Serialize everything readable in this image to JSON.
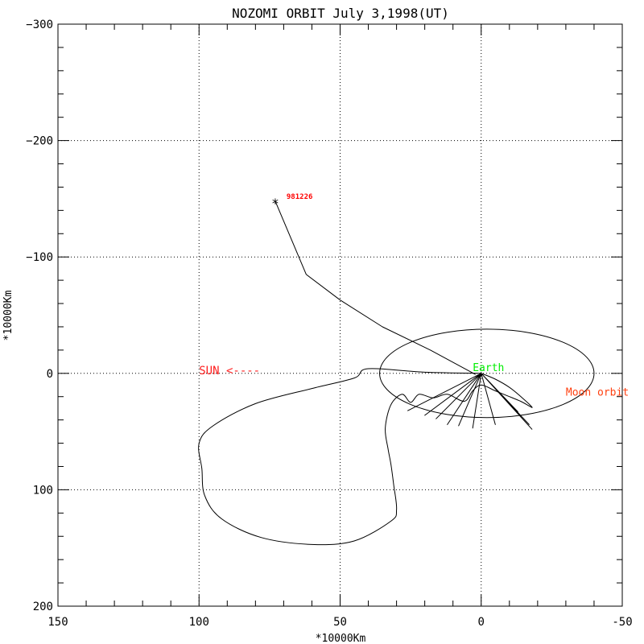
{
  "chart_data": {
    "type": "line",
    "title": "NOZOMI ORBIT July 3,1998(UT)",
    "xlabel": "*10000Km",
    "ylabel": "*10000Km",
    "xlim": [
      150,
      -50
    ],
    "ylim": [
      -300,
      200
    ],
    "x_ticks": [
      150,
      100,
      50,
      0,
      -50
    ],
    "y_ticks": [
      -300,
      -200,
      -100,
      0,
      100,
      200
    ],
    "grid": true,
    "colors": {
      "axes": "#000000",
      "orbit": "#000000",
      "sun": "#ff2020",
      "earth": "#00ee00",
      "moon": "#ff4010",
      "date": "#ff0000"
    },
    "annotations": {
      "sun": "SUN <----",
      "earth": "Earth",
      "moon_orbit": "Moon orbit",
      "end_date": "981226",
      "end_marker": "*"
    },
    "series": [
      {
        "values": [
          [
            0,
            0
          ],
          [
            20,
            -1
          ],
          [
            40,
            -4
          ],
          [
            45,
            4
          ],
          [
            60,
            13
          ],
          [
            80,
            26
          ],
          [
            95,
            45
          ],
          [
            100,
            60
          ],
          [
            99,
            82
          ],
          [
            98,
            105
          ],
          [
            92,
            125
          ],
          [
            78,
            141
          ],
          [
            60,
            147
          ],
          [
            45,
            144
          ],
          [
            32,
            127
          ],
          [
            30,
            117
          ],
          [
            31,
            96
          ],
          [
            32,
            78
          ],
          [
            33,
            65
          ],
          [
            34,
            47
          ],
          [
            32,
            27
          ],
          [
            28,
            18
          ],
          [
            25,
            25
          ],
          [
            22,
            18
          ],
          [
            17,
            21
          ],
          [
            12,
            18
          ],
          [
            6,
            24
          ],
          [
            3,
            15
          ],
          [
            0,
            10
          ],
          [
            -5,
            15
          ],
          [
            -10,
            20
          ],
          [
            -14,
            24
          ],
          [
            -17,
            28
          ],
          [
            -18,
            29
          ],
          [
            -15,
            22
          ],
          [
            -10,
            12
          ],
          [
            -5,
            5
          ],
          [
            0,
            0
          ]
        ]
      },
      {
        "values": [
          [
            2,
            1
          ],
          [
            18,
            -20
          ],
          [
            35,
            -40
          ],
          [
            50,
            -63
          ],
          [
            62,
            -85
          ],
          [
            73,
            -148
          ]
        ]
      },
      {
        "values": [
          [
            0,
            0
          ],
          [
            26,
            32
          ],
          [
            0,
            0
          ],
          [
            20,
            36
          ],
          [
            0,
            0
          ],
          [
            16,
            39
          ],
          [
            0,
            0
          ],
          [
            12,
            44
          ],
          [
            0,
            0
          ],
          [
            8,
            45
          ],
          [
            0,
            0
          ],
          [
            3,
            47
          ],
          [
            0,
            0
          ],
          [
            -5,
            44
          ],
          [
            0,
            0
          ],
          [
            -13,
            33
          ],
          [
            0,
            0
          ],
          [
            -17,
            44
          ],
          [
            0,
            0
          ],
          [
            -18,
            48
          ],
          [
            0,
            0
          ]
        ]
      },
      {
        "type": "ellipse",
        "center": [
          -2,
          0
        ],
        "radii_x": 38,
        "radii_y": 38
      }
    ]
  }
}
